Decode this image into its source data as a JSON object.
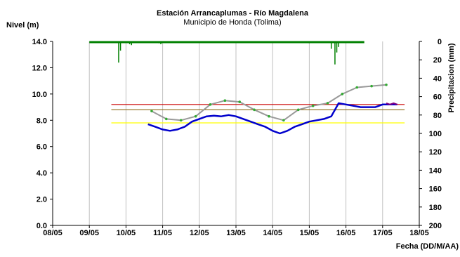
{
  "chart_data": {
    "type": "line",
    "title": "Estación Arrancaplumas - Río Magdalena",
    "subtitle": "Municipio de Honda (Tolima)",
    "ylabel": "Nivel (m)",
    "y2label": "Precipitacion (mm)",
    "xlabel": "Fecha (DD/M/AA)",
    "xlim": [
      0,
      10
    ],
    "ylim": [
      0,
      14
    ],
    "y2lim": [
      0,
      200
    ],
    "y2_inverted": true,
    "grid": "vertical",
    "x_tick_labels": [
      "08/05",
      "09/05",
      "10/05",
      "11/05",
      "12/05",
      "13/05",
      "14/05",
      "15/05",
      "16/05",
      "17/05",
      "18/05"
    ],
    "y_tick_values": [
      0,
      2,
      4,
      6,
      8,
      10,
      12,
      14
    ],
    "y_tick_labels": [
      "0.0",
      "2.0",
      "4.0",
      "6.0",
      "8.0",
      "10.0",
      "12.0",
      "14.0"
    ],
    "y2_tick_labels": [
      "0",
      "20",
      "40",
      "60",
      "80",
      "100",
      "120",
      "140",
      "160",
      "180",
      "200"
    ],
    "thresholds": [
      {
        "value": 9.2,
        "color": "#cc0000",
        "x_start": 1.6
      },
      {
        "value": 8.8,
        "color": "#8b6914",
        "x_start": 1.6
      },
      {
        "value": 7.8,
        "color": "#ffff00",
        "x_start": 1.6
      }
    ],
    "series": [
      {
        "color": "#0000cc",
        "x": [
          2.6,
          2.8,
          3.0,
          3.2,
          3.4,
          3.6,
          3.8,
          4.0,
          4.2,
          4.4,
          4.6,
          4.8,
          5.0,
          5.2,
          5.4,
          5.6,
          5.8,
          6.0,
          6.2,
          6.4,
          6.6,
          6.8,
          7.0,
          7.2,
          7.4,
          7.6,
          7.8,
          8.0,
          8.2,
          8.4,
          8.6,
          8.8,
          9.0,
          9.2,
          9.4
        ],
        "y": [
          7.7,
          7.5,
          7.3,
          7.2,
          7.3,
          7.5,
          7.9,
          8.1,
          8.3,
          8.35,
          8.3,
          8.4,
          8.3,
          8.1,
          7.9,
          7.7,
          7.5,
          7.2,
          7.0,
          7.2,
          7.5,
          7.7,
          7.9,
          8.0,
          8.1,
          8.3,
          9.3,
          9.2,
          9.1,
          9.0,
          9.0,
          9.0,
          9.2,
          9.2,
          9.2
        ]
      },
      {
        "color": "#999999",
        "x": [
          2.7,
          3.1,
          3.5,
          3.9,
          4.3,
          4.7,
          5.1,
          5.5,
          5.9,
          6.3,
          6.7,
          7.1,
          7.5,
          7.9,
          8.3,
          8.7,
          9.1
        ],
        "y": [
          8.7,
          8.1,
          8.0,
          8.3,
          9.2,
          9.5,
          9.4,
          8.8,
          8.3,
          8.0,
          8.8,
          9.1,
          9.3,
          10.0,
          10.5,
          10.6,
          10.7
        ]
      },
      {
        "color": "#800080",
        "x": [
          9.1,
          9.2,
          9.3,
          9.4
        ],
        "y": [
          9.3,
          9.2,
          9.3,
          9.2
        ]
      }
    ],
    "precipitation": {
      "color": "#008000",
      "x_start": 1.0,
      "x_end": 8.5,
      "spikes": [
        {
          "x": 1.8,
          "mm": 23
        },
        {
          "x": 1.85,
          "mm": 10
        },
        {
          "x": 2.1,
          "mm": 3
        },
        {
          "x": 2.15,
          "mm": 4
        },
        {
          "x": 2.9,
          "mm": 2
        },
        {
          "x": 2.95,
          "mm": 3
        },
        {
          "x": 7.0,
          "mm": 2
        },
        {
          "x": 7.6,
          "mm": 8
        },
        {
          "x": 7.7,
          "mm": 25
        },
        {
          "x": 7.75,
          "mm": 12
        },
        {
          "x": 7.8,
          "mm": 6
        }
      ]
    }
  }
}
